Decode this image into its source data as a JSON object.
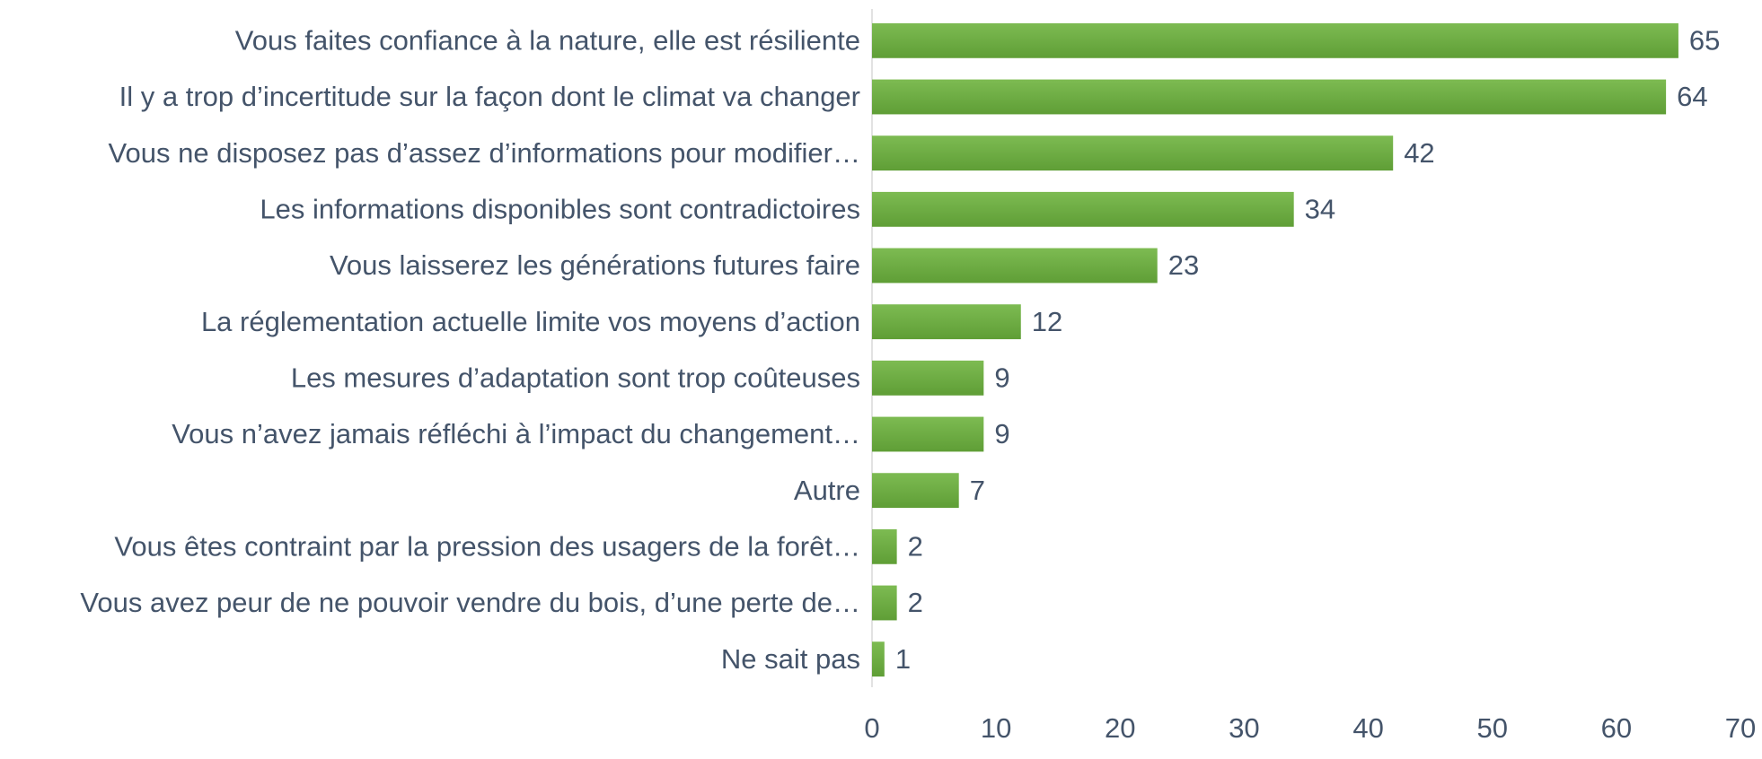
{
  "chart_data": {
    "type": "bar",
    "orientation": "horizontal",
    "categories": [
      "Vous faites confiance à la nature, elle est résiliente",
      "Il y a trop d’incertitude sur la façon dont le climat va changer",
      "Vous ne disposez pas d’assez d’informations pour modifier…",
      "Les informations disponibles sont contradictoires",
      "Vous laisserez les générations futures faire",
      "La réglementation actuelle limite vos moyens d’action",
      "Les mesures d’adaptation sont trop coûteuses",
      "Vous n’avez jamais réfléchi à l’impact du changement…",
      "Autre",
      "Vous êtes contraint par la pression des usagers de la forêt…",
      "Vous avez peur de ne pouvoir vendre du bois, d’une perte de…",
      "Ne sait pas"
    ],
    "values": [
      65,
      64,
      42,
      34,
      23,
      12,
      9,
      9,
      7,
      2,
      2,
      1
    ],
    "color": "#70ad47",
    "xlim": [
      0,
      70
    ],
    "xticks": [
      0,
      10,
      20,
      30,
      40,
      50,
      60,
      70
    ],
    "grid": false
  }
}
